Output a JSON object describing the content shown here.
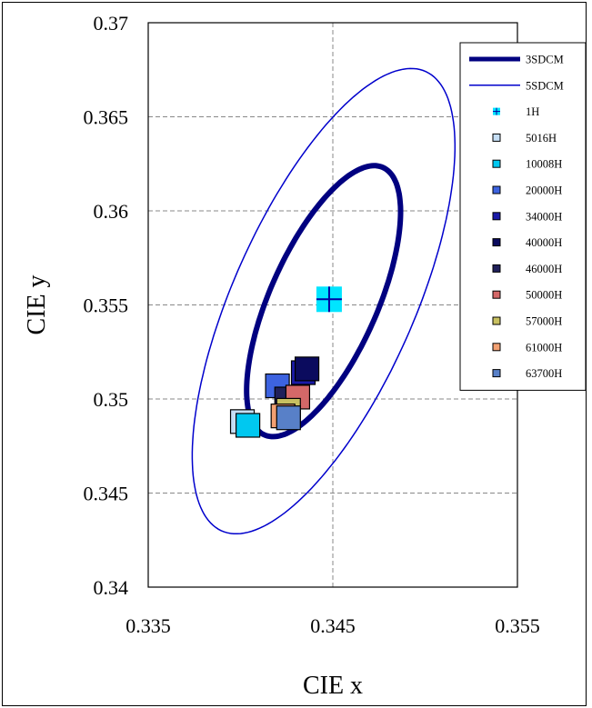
{
  "chart_data": {
    "type": "scatter",
    "title": "",
    "xlabel": "CIE x",
    "ylabel": "CIE y",
    "xlim": [
      0.335,
      0.355
    ],
    "ylim": [
      0.34,
      0.37
    ],
    "xticks": [
      0.335,
      0.345,
      0.355
    ],
    "xtick_labels": [
      "0.335",
      "0.345",
      "0.355"
    ],
    "yticks": [
      0.34,
      0.345,
      0.35,
      0.355,
      0.36,
      0.365,
      0.37
    ],
    "ytick_labels": [
      "0.34",
      "0.345",
      "0.35",
      "0.355",
      "0.36",
      "0.365",
      "0.37"
    ],
    "grid": true,
    "legend_position": "top-right",
    "ellipses": [
      {
        "name": "3SDCM",
        "center": [
          0.3445,
          0.3552
        ],
        "semi_major": 0.0078,
        "semi_minor": 0.0029,
        "slope": 2.2,
        "color": "#000080",
        "style": "thick"
      },
      {
        "name": "5SDCM",
        "center": [
          0.3445,
          0.3552
        ],
        "semi_major": 0.0134,
        "semi_minor": 0.0049,
        "slope": 2.2,
        "color": "#0000cc",
        "style": "thin"
      }
    ],
    "series": [
      {
        "name": "1H",
        "x": 0.3448,
        "y": 0.3553,
        "marker": "plus",
        "color": "#00e5ff"
      },
      {
        "name": "5016H",
        "x": 0.3401,
        "y": 0.3488,
        "marker": "square",
        "color": "#c5def5"
      },
      {
        "name": "10008H",
        "x": 0.3404,
        "y": 0.3486,
        "marker": "square",
        "color": "#00c8f0"
      },
      {
        "name": "20000H",
        "x": 0.342,
        "y": 0.3507,
        "marker": "square",
        "color": "#3d63e0"
      },
      {
        "name": "34000H",
        "x": 0.3434,
        "y": 0.3514,
        "marker": "square",
        "color": "#1a1aa8"
      },
      {
        "name": "40000H",
        "x": 0.3436,
        "y": 0.3516,
        "marker": "square",
        "color": "#0b0b5e"
      },
      {
        "name": "46000H",
        "x": 0.3425,
        "y": 0.35,
        "marker": "square",
        "color": "#20205a"
      },
      {
        "name": "50000H",
        "x": 0.3431,
        "y": 0.3501,
        "marker": "square",
        "color": "#d46868"
      },
      {
        "name": "57000H",
        "x": 0.3426,
        "y": 0.3494,
        "marker": "square",
        "color": "#c8c060"
      },
      {
        "name": "61000H",
        "x": 0.3423,
        "y": 0.3491,
        "marker": "square",
        "color": "#f2a072"
      },
      {
        "name": "63700H",
        "x": 0.3426,
        "y": 0.349,
        "marker": "square",
        "color": "#5880c8"
      }
    ]
  }
}
